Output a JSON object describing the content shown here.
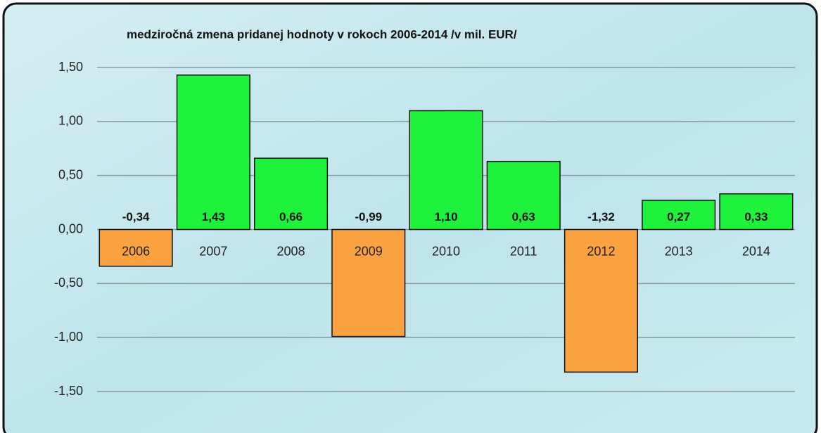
{
  "chart_data": {
    "type": "bar",
    "title": "medziročná zmena pridanej  hodnoty v rokoch 2006-2014 /v mil. EUR/",
    "categories": [
      "2006",
      "2007",
      "2008",
      "2009",
      "2010",
      "2011",
      "2012",
      "2013",
      "2014"
    ],
    "values": [
      -0.34,
      1.43,
      0.66,
      -0.99,
      1.1,
      0.63,
      -1.32,
      0.27,
      0.33
    ],
    "value_labels": [
      "-0,34",
      "1,43",
      "0,66",
      "-0,99",
      "1,10",
      "0,63",
      "-1,32",
      "0,27",
      "0,33"
    ],
    "positive_color": "#1ff23a",
    "negative_color": "#f9a23f",
    "ylim": [
      -1.5,
      1.5
    ],
    "yticks": [
      {
        "value": -1.5,
        "label": "-1,50"
      },
      {
        "value": -1,
        "label": "-1,00"
      },
      {
        "value": -0.5,
        "label": "-0,50"
      },
      {
        "value": 0,
        "label": "0,00"
      },
      {
        "value": 0.5,
        "label": "0,50"
      },
      {
        "value": 1,
        "label": "1,00"
      },
      {
        "value": 1.5,
        "label": "1,50"
      }
    ],
    "grid": true
  }
}
